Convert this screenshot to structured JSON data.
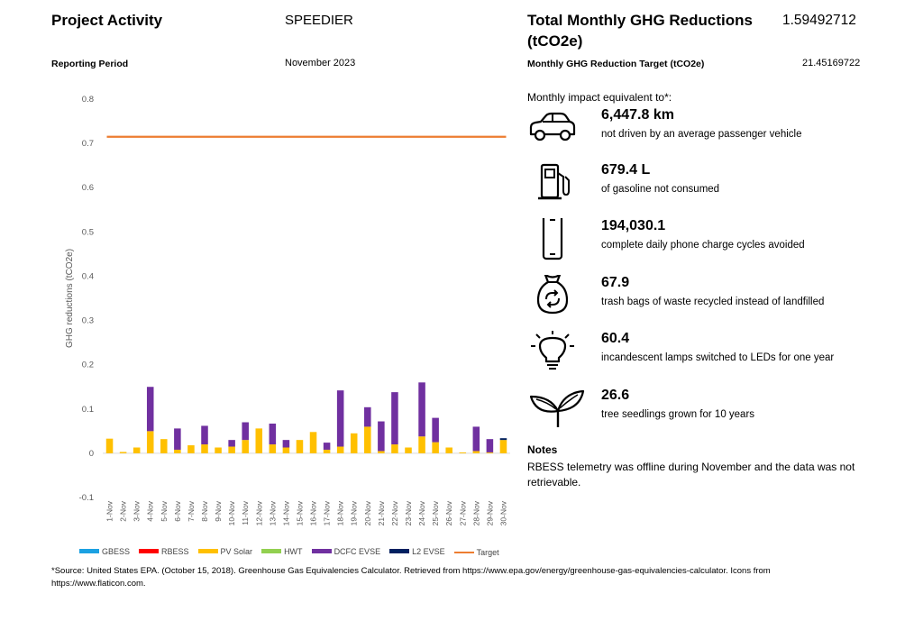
{
  "header": {
    "project_activity_label": "Project Activity",
    "project_name": "SPEEDIER",
    "total_label_line1": "Total Monthly GHG Reductions",
    "total_label_line2": "(tCO2e)",
    "total_value": "1.59492712",
    "reporting_period_label": "Reporting Period",
    "reporting_period_value": "November 2023",
    "target_label": "Monthly GHG Reduction Target (tCO2e)",
    "target_value": "21.45169722"
  },
  "impact": {
    "heading": "Monthly impact equivalent to*:",
    "items": [
      {
        "icon": "car-icon",
        "value": "6,447.8 km",
        "desc": "not driven by an average passenger vehicle"
      },
      {
        "icon": "fuel-pump-icon",
        "value": "679.4 L",
        "desc": "of gasoline not consumed"
      },
      {
        "icon": "phone-icon",
        "value": "194,030.1",
        "desc": "complete daily phone charge cycles avoided"
      },
      {
        "icon": "recycle-bag-icon",
        "value": "67.9",
        "desc": "trash bags of waste recycled instead of landfilled"
      },
      {
        "icon": "light-bulb-icon",
        "value": "60.4",
        "desc": "incandescent lamps switched to LEDs for one year"
      },
      {
        "icon": "seedling-icon",
        "value": "26.6",
        "desc": "tree seedlings grown for 10 years"
      }
    ]
  },
  "notes": {
    "heading": "Notes",
    "text": "RBESS telemetry was offline during November and the data was not retrievable."
  },
  "footer": {
    "source_line1": "*Source: United States EPA. (October 15, 2018). Greenhouse Gas Equivalencies Calculator. Retrieved from https://www.epa.gov/energy/greenhouse-gas-equivalencies-calculator. Icons from",
    "source_line2": "https://www.flaticon.com."
  },
  "chart_data": {
    "type": "bar",
    "stacked": true,
    "ylabel": "GHG reductions (tCO2e)",
    "xlabel": "",
    "ylim": [
      -0.1,
      0.8
    ],
    "yticks": [
      -0.1,
      0,
      0.1,
      0.2,
      0.3,
      0.4,
      0.5,
      0.6,
      0.7,
      0.8
    ],
    "grid": false,
    "legend_position": "bottom",
    "categories": [
      "1-Nov",
      "2-Nov",
      "3-Nov",
      "4-Nov",
      "5-Nov",
      "6-Nov",
      "7-Nov",
      "8-Nov",
      "9-Nov",
      "10-Nov",
      "11-Nov",
      "12-Nov",
      "13-Nov",
      "14-Nov",
      "15-Nov",
      "16-Nov",
      "17-Nov",
      "18-Nov",
      "19-Nov",
      "20-Nov",
      "21-Nov",
      "22-Nov",
      "23-Nov",
      "24-Nov",
      "25-Nov",
      "26-Nov",
      "27-Nov",
      "28-Nov",
      "29-Nov",
      "30-Nov"
    ],
    "series": [
      {
        "name": "GBESS",
        "color": "#1ba1e2",
        "values": [
          0,
          0,
          0,
          0,
          0,
          0,
          0,
          0,
          0,
          0,
          0,
          0,
          0,
          0,
          0,
          0,
          0,
          0,
          0,
          0,
          0,
          0,
          0,
          0,
          0,
          0,
          0,
          0,
          0,
          0
        ]
      },
      {
        "name": "RBESS",
        "color": "#ff0000",
        "values": [
          0,
          0,
          0,
          0,
          0,
          0,
          0,
          0,
          0,
          0,
          0,
          0,
          0,
          0,
          0,
          0,
          0,
          0,
          0,
          0,
          0,
          0,
          0,
          0,
          0,
          0,
          0,
          0,
          0,
          0
        ]
      },
      {
        "name": "PV Solar",
        "color": "#ffc000",
        "values": [
          0.033,
          0.003,
          0.013,
          0.05,
          0.032,
          0.008,
          0.018,
          0.02,
          0.013,
          0.015,
          0.03,
          0.056,
          0.02,
          0.013,
          0.03,
          0.048,
          0.008,
          0.015,
          0.045,
          0.06,
          0.005,
          0.02,
          0.013,
          0.038,
          0.025,
          0.013,
          0.002,
          0.005,
          0.002,
          0.03
        ]
      },
      {
        "name": "HWT",
        "color": "#92d050",
        "values": [
          0,
          0,
          0,
          0,
          0,
          0,
          0,
          0,
          0,
          0,
          0,
          0,
          0,
          0,
          0,
          0,
          0,
          0,
          0,
          0,
          0,
          0,
          0,
          0,
          0,
          0,
          0,
          0,
          0,
          0
        ]
      },
      {
        "name": "DCFC EVSE",
        "color": "#7030a0",
        "values": [
          0,
          0,
          0,
          0.1,
          0,
          0.048,
          0,
          0.042,
          0,
          0.015,
          0.04,
          0,
          0.047,
          0.017,
          0,
          0,
          0.016,
          0.127,
          0,
          0.044,
          0.067,
          0.118,
          0,
          0.122,
          0.055,
          0,
          0,
          0.055,
          0.03,
          0
        ]
      },
      {
        "name": "L2 EVSE",
        "color": "#002060",
        "values": [
          0,
          0,
          0,
          0,
          0,
          0,
          0,
          0,
          0,
          0,
          0,
          0,
          0,
          0,
          0,
          0,
          0,
          0,
          0,
          0,
          0,
          0,
          0,
          0,
          0,
          0,
          0,
          0,
          0,
          0.004
        ]
      }
    ],
    "target": {
      "name": "Target",
      "color": "#ed7d31",
      "value": 0.715
    }
  }
}
